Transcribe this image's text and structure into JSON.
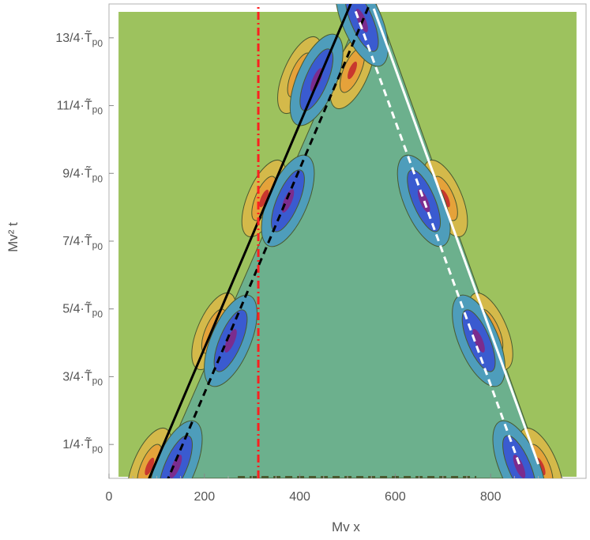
{
  "chart_data": {
    "type": "contour",
    "xlabel": "Mv x",
    "ylabel": "Mv² t",
    "xlim": [
      0,
      1000
    ],
    "ylim": [
      0,
      1
    ],
    "x_ticks": [
      {
        "value": 0,
        "label": "0"
      },
      {
        "value": 200,
        "label": "200"
      },
      {
        "value": 400,
        "label": "400"
      },
      {
        "value": 600,
        "label": "600"
      },
      {
        "value": 800,
        "label": "800"
      }
    ],
    "y_ticks": [
      {
        "value": 0.0714,
        "num": "1/4·",
        "sym": "T̃",
        "sub1": "p",
        "sub2": "0"
      },
      {
        "value": 0.2143,
        "num": "3/4·",
        "sym": "T̃",
        "sub1": "p",
        "sub2": "0"
      },
      {
        "value": 0.3571,
        "num": "5/4·",
        "sym": "T̃",
        "sub1": "p",
        "sub2": "0"
      },
      {
        "value": 0.5,
        "num": "7/4·",
        "sym": "T̃",
        "sub1": "p",
        "sub2": "0"
      },
      {
        "value": 0.6429,
        "num": "9/4·",
        "sym": "T̃",
        "sub1": "p",
        "sub2": "0"
      },
      {
        "value": 0.7857,
        "num": "11/4·",
        "sym": "T̃",
        "sub1": "p",
        "sub2": "0"
      },
      {
        "value": 0.9286,
        "num": "13/4·",
        "sym": "T̃",
        "sub1": "p",
        "sub2": "0"
      }
    ],
    "domain_x": [
      20,
      980
    ],
    "domain_y": [
      0,
      1
    ],
    "interior_polygon": [
      [
        100,
        0
      ],
      [
        535,
        1
      ],
      [
        560,
        1
      ],
      [
        915,
        0
      ]
    ],
    "colors": {
      "background": "#9dc25e",
      "interior": "#6cb08d",
      "blob_outer": "#4e9dbb",
      "blob_inner": "#3a5bd0",
      "blob_core": "#7b2c8e",
      "warm_outer": "#d4b94a",
      "warm_mid": "#e5a23a",
      "warm_core": "#c8372e",
      "contour_line": "#4a5a30"
    },
    "cold_blobs": [
      {
        "x": 140,
        "y": 0.025
      },
      {
        "x": 255,
        "y": 0.29
      },
      {
        "x": 375,
        "y": 0.585
      },
      {
        "x": 435,
        "y": 0.84
      },
      {
        "x": 530,
        "y": 0.965
      },
      {
        "x": 660,
        "y": 0.585
      },
      {
        "x": 775,
        "y": 0.29
      },
      {
        "x": 860,
        "y": 0.025
      }
    ],
    "warm_blobs": [
      {
        "x": 85,
        "y": 0.025
      },
      {
        "x": 220,
        "y": 0.31
      },
      {
        "x": 325,
        "y": 0.59
      },
      {
        "x": 400,
        "y": 0.85
      },
      {
        "x": 510,
        "y": 0.86
      },
      {
        "x": 705,
        "y": 0.59
      },
      {
        "x": 800,
        "y": 0.31
      },
      {
        "x": 905,
        "y": 0.025
      }
    ],
    "lines": [
      {
        "style": "solid",
        "color": "#000000",
        "points": [
          [
            80,
            -0.01
          ],
          [
            515,
            1.02
          ]
        ]
      },
      {
        "style": "dashed",
        "color": "#000000",
        "points": [
          [
            120,
            -0.01
          ],
          [
            555,
            1.02
          ]
        ]
      },
      {
        "style": "solid",
        "color": "#ffffff",
        "points": [
          [
            900,
            0.03
          ],
          [
            555,
            0.99
          ]
        ]
      },
      {
        "style": "dashed",
        "color": "#ffffff",
        "points": [
          [
            860,
            0.03
          ],
          [
            515,
            0.99
          ]
        ]
      },
      {
        "style": "dashdot",
        "color": "#ff2020",
        "points": [
          [
            313,
            0
          ],
          [
            313,
            1.02
          ]
        ]
      },
      {
        "style": "dashed",
        "color": "#4a5a30",
        "points": [
          [
            270,
            0.003
          ],
          [
            770,
            0.003
          ]
        ]
      }
    ]
  }
}
